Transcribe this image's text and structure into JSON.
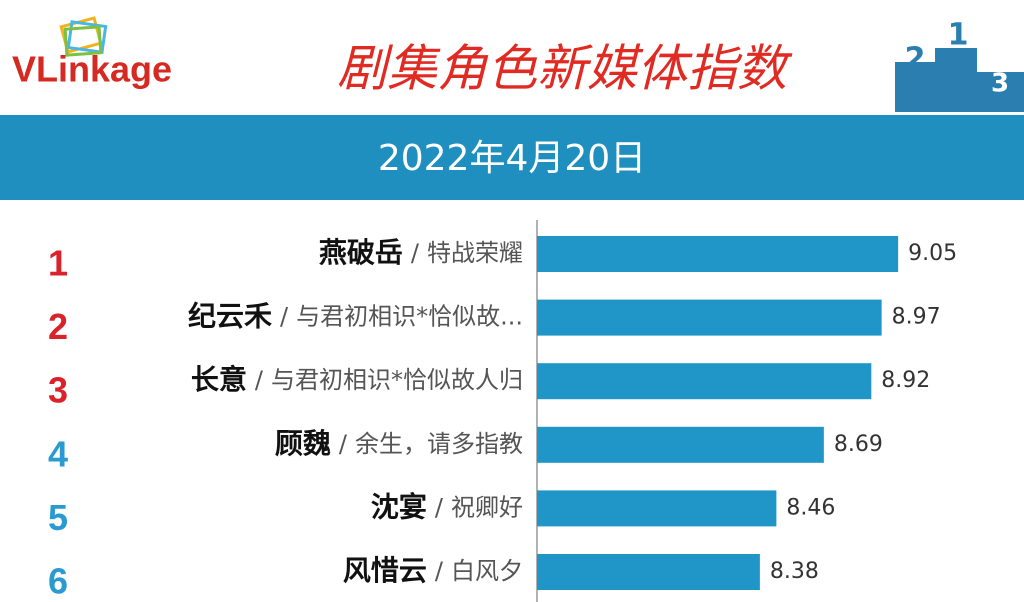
{
  "chart_data": {
    "type": "bar",
    "orientation": "horizontal",
    "brand": "VLinkage",
    "title": "剧集角色新媒体指数",
    "subtitle": "2022年4月20日",
    "ranks": [
      "1",
      "2",
      "3",
      "4",
      "5",
      "6"
    ],
    "rank_colors": [
      "#d9222a",
      "#d9222a",
      "#d9222a",
      "#2a9ad0",
      "#2a9ad0",
      "#2a9ad0"
    ],
    "categories": [
      "燕破岳",
      "纪云禾",
      "长意",
      "顾魏",
      "沈宴",
      "风惜云"
    ],
    "separator": "/",
    "shows": [
      "特战荣耀",
      "与君初相识*恰似故...",
      "与君初相识*恰似故人归",
      "余生，请多指教",
      "祝卿好",
      "白风夕"
    ],
    "values": [
      9.05,
      8.97,
      8.92,
      8.69,
      8.46,
      8.38
    ],
    "color": "#1f95c8",
    "xlim": [
      7.3,
      9.5
    ]
  }
}
